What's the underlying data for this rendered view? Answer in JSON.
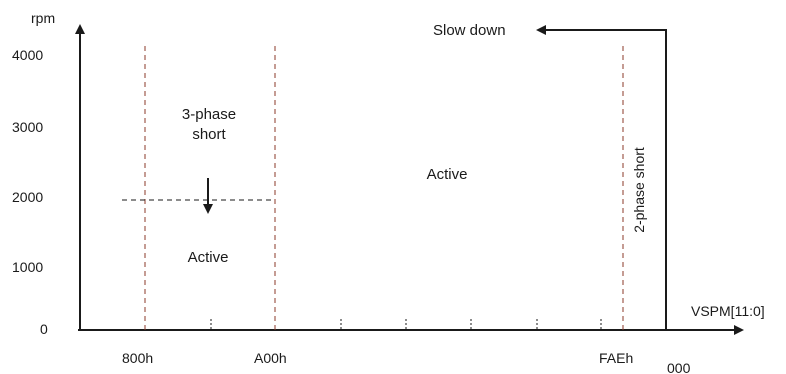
{
  "axes": {
    "y_unit": "rpm",
    "x_label": "VSPM[11:0]",
    "y_ticks": [
      "4000",
      "3000",
      "2000",
      "1000",
      "0"
    ],
    "x_ticks": [
      "800h",
      "A00h",
      "FAEh",
      "000"
    ]
  },
  "regions": {
    "three_phase_short_line1": "3-phase",
    "three_phase_short_line2": "short",
    "active_low": "Active",
    "active_main": "Active",
    "two_phase_short": "2-phase short"
  },
  "annotations": {
    "slow_down": "Slow down"
  },
  "colors": {
    "axis": "#1a1a1a",
    "boundary": "#8b3a2a",
    "threshold": "#1a1a1a",
    "text": "#1a1a1a"
  }
}
